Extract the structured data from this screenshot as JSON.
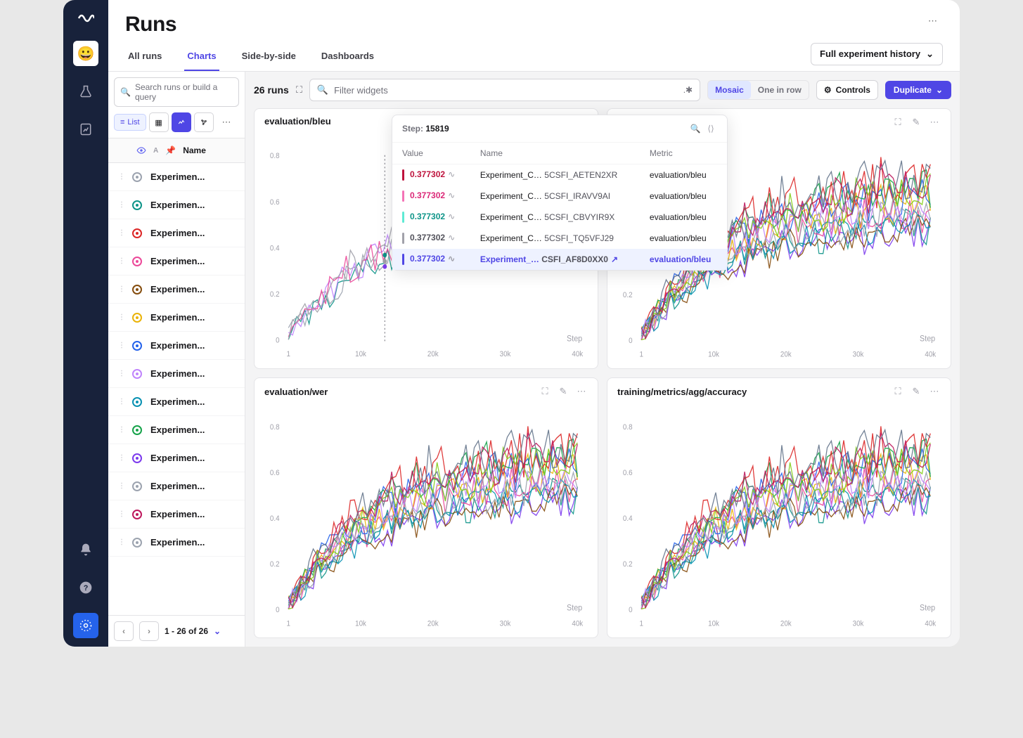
{
  "title": "Runs",
  "tabs": [
    "All runs",
    "Charts",
    "Side-by-side",
    "Dashboards"
  ],
  "active_tab": 1,
  "history_button": "Full experiment history",
  "search_placeholder": "Search runs or build a query",
  "view_list_label": "List",
  "name_header": "Name",
  "run_list_label": "Experimen...",
  "run_colors": [
    "#9ca3af",
    "#0d9488",
    "#dc2626",
    "#ec4899",
    "#854d0e",
    "#eab308",
    "#2563eb",
    "#c084fc",
    "#0891b2",
    "#16a34a",
    "#7c3aed",
    "#9ca3af",
    "#be185d",
    "#9ca3af"
  ],
  "pager_text": "1 - 26 of 26",
  "run_count": "26 runs",
  "filter_placeholder": "Filter widgets",
  "pill_mosaic": "Mosaic",
  "pill_one": "One in row",
  "controls_label": "Controls",
  "duplicate_label": "Duplicate",
  "charts": [
    {
      "title": "evaluation/bleu"
    },
    {
      "title": "evaluation/bleu"
    },
    {
      "title": "evaluation/wer"
    },
    {
      "title": "training/metrics/agg/accuracy"
    }
  ],
  "axis": {
    "y_ticks": [
      "0",
      "0.2",
      "0.4",
      "0.6",
      "0.8"
    ],
    "x_ticks": [
      "1",
      "10k",
      "20k",
      "30k",
      "40k"
    ],
    "x_label": "Step"
  },
  "chart_style": {
    "background": "#ffffff",
    "grid_color": "#f4f4f5",
    "axis_color": "#a1a1aa",
    "cursor_line_color": "#71717a",
    "ylim": [
      0,
      0.9
    ],
    "partial_series_colors": [
      "#0d9488",
      "#9ca3af",
      "#c084fc",
      "#ec4899",
      "#a1a1aa"
    ],
    "full_series_colors": [
      "#7c3aed",
      "#0d9488",
      "#ec4899",
      "#eab308",
      "#2563eb",
      "#16a34a",
      "#dc2626",
      "#854d0e",
      "#0891b2",
      "#9ca3af",
      "#c084fc",
      "#84cc16",
      "#be185d",
      "#64748b"
    ]
  },
  "tooltip": {
    "step_label": "Step:",
    "step_value": "15819",
    "headers": [
      "Value",
      "Name",
      "Metric"
    ],
    "rows": [
      {
        "color": "#be123c",
        "value": "0.377302",
        "value_color": "#be123c",
        "name": "Experiment_C…",
        "suffix": "5CSFI_AETEN2XR",
        "metric": "evaluation/bleu",
        "hl": false
      },
      {
        "color": "#f472b6",
        "value": "0.377302",
        "value_color": "#db2777",
        "name": "Experiment_C…",
        "suffix": "5CSFI_IRAVV9AI",
        "metric": "evaluation/bleu",
        "hl": false
      },
      {
        "color": "#5eead4",
        "value": "0.377302",
        "value_color": "#0d9488",
        "name": "Experiment_C…",
        "suffix": "5CSFI_CBVYIR9X",
        "metric": "evaluation/bleu",
        "hl": false
      },
      {
        "color": "#a1a1aa",
        "value": "0.377302",
        "value_color": "#52525b",
        "name": "Experiment_C…",
        "suffix": "5CSFI_TQ5VFJ29",
        "metric": "evaluation/bleu",
        "hl": false
      },
      {
        "color": "#4f46e5",
        "value": "0.377302",
        "value_color": "#4f46e5",
        "name": "Experiment_…",
        "suffix": "CSFI_AF8D0XX0",
        "metric": "evaluation/bleu",
        "hl": true
      }
    ]
  }
}
